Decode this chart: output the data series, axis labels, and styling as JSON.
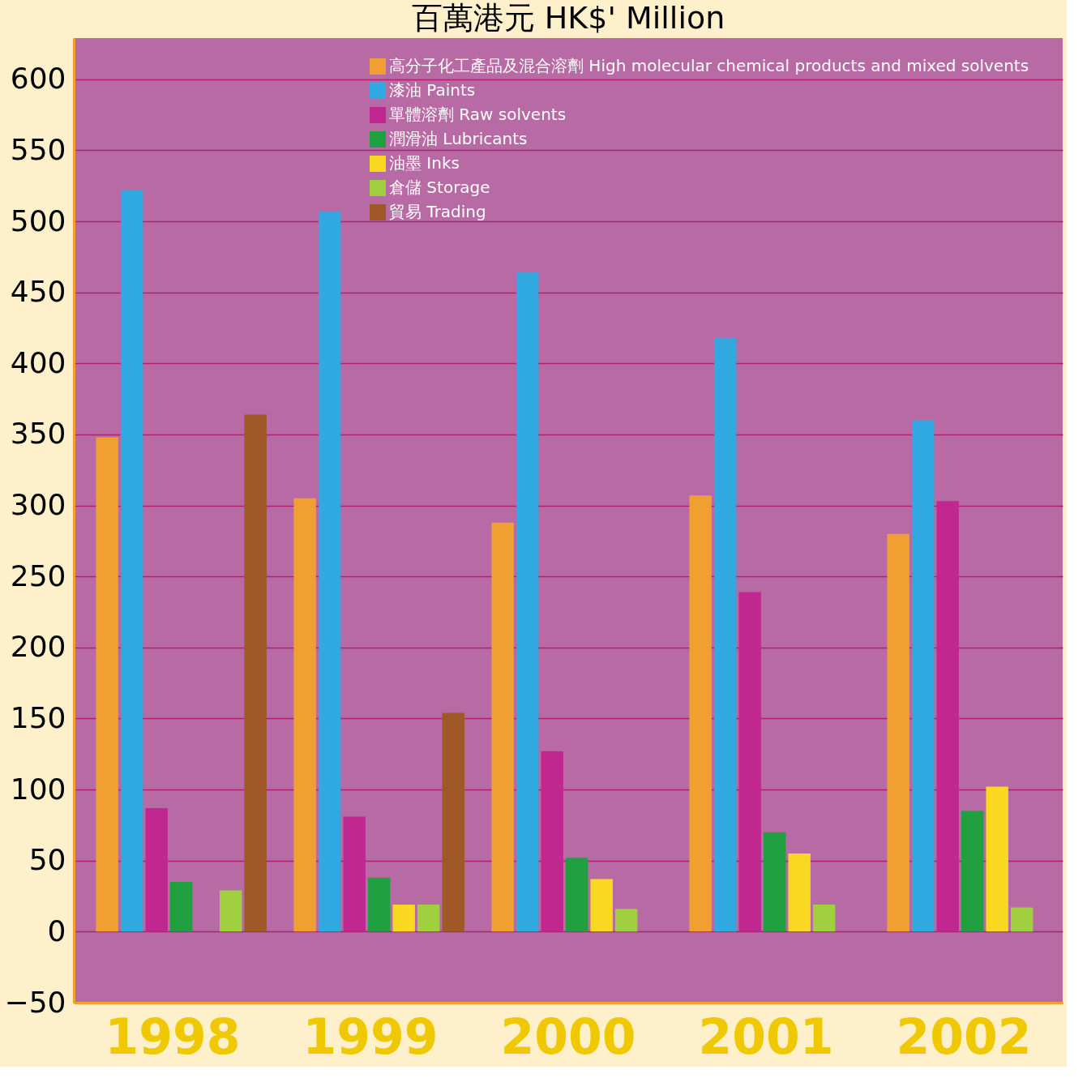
{
  "chart_data": {
    "type": "bar",
    "title": "百萬港元  HK$' Million",
    "categories": [
      "1998",
      "1999",
      "2000",
      "2001",
      "2002"
    ],
    "series": [
      {
        "name": "高分子化工產品及混合溶劑  High molecular chemical products and mixed solvents",
        "color": "#f0a030",
        "values": [
          348,
          305,
          288,
          307,
          280
        ]
      },
      {
        "name": "漆油  Paints",
        "color": "#30a8e0",
        "values": [
          522,
          507,
          464,
          418,
          360
        ]
      },
      {
        "name": "單體溶劑  Raw solvents",
        "color": "#c02890",
        "values": [
          87,
          81,
          127,
          239,
          303
        ]
      },
      {
        "name": "潤滑油  Lubricants",
        "color": "#20a040",
        "values": [
          35,
          38,
          52,
          70,
          85
        ]
      },
      {
        "name": "油墨  Inks",
        "color": "#f8d820",
        "values": [
          null,
          19,
          37,
          55,
          102
        ]
      },
      {
        "name": "倉儲  Storage",
        "color": "#a0d040",
        "values": [
          29,
          19,
          16,
          19,
          17
        ]
      },
      {
        "name": "貿易  Trading",
        "color": "#a05828",
        "values": [
          364,
          154,
          null,
          null,
          null
        ]
      }
    ],
    "ylim": [
      -50,
      629
    ],
    "yticks": [
      -50,
      0,
      50,
      100,
      150,
      200,
      250,
      300,
      350,
      400,
      450,
      500,
      550,
      600
    ],
    "grid": "y",
    "legend": "top"
  }
}
